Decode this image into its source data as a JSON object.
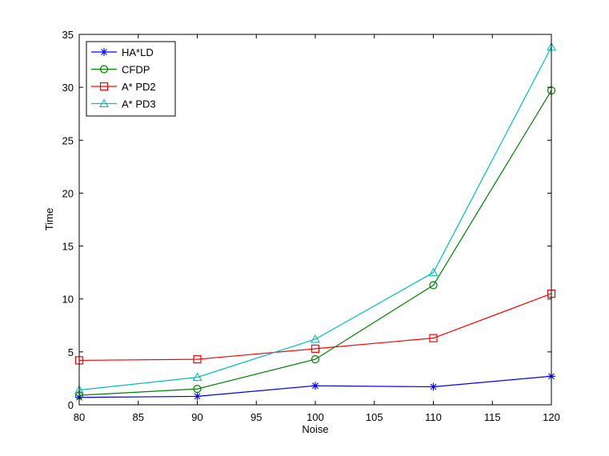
{
  "chart_data": {
    "type": "line",
    "title": "",
    "xlabel": "Noise",
    "ylabel": "Time",
    "xlim": [
      80,
      120
    ],
    "ylim": [
      0,
      35
    ],
    "x_ticks": [
      80,
      85,
      90,
      95,
      100,
      105,
      110,
      115,
      120
    ],
    "y_ticks": [
      0,
      5,
      10,
      15,
      20,
      25,
      30,
      35
    ],
    "grid": false,
    "legend_position": "top-left",
    "x": [
      80,
      90,
      100,
      110,
      120
    ],
    "series": [
      {
        "name": "HA*LD",
        "color": "#0000ff",
        "marker": "star",
        "values": [
          0.7,
          0.8,
          1.8,
          1.7,
          2.7
        ]
      },
      {
        "name": "CFDP",
        "color": "#008000",
        "marker": "circle",
        "values": [
          0.9,
          1.5,
          4.3,
          11.3,
          29.7
        ]
      },
      {
        "name": "A* PD2",
        "color": "#ff0000",
        "marker": "square",
        "values": [
          4.2,
          4.3,
          5.3,
          6.3,
          10.5
        ]
      },
      {
        "name": "A* PD3",
        "color": "#00bfbf",
        "marker": "triangle",
        "values": [
          1.4,
          2.6,
          6.2,
          12.5,
          33.8
        ]
      }
    ]
  }
}
